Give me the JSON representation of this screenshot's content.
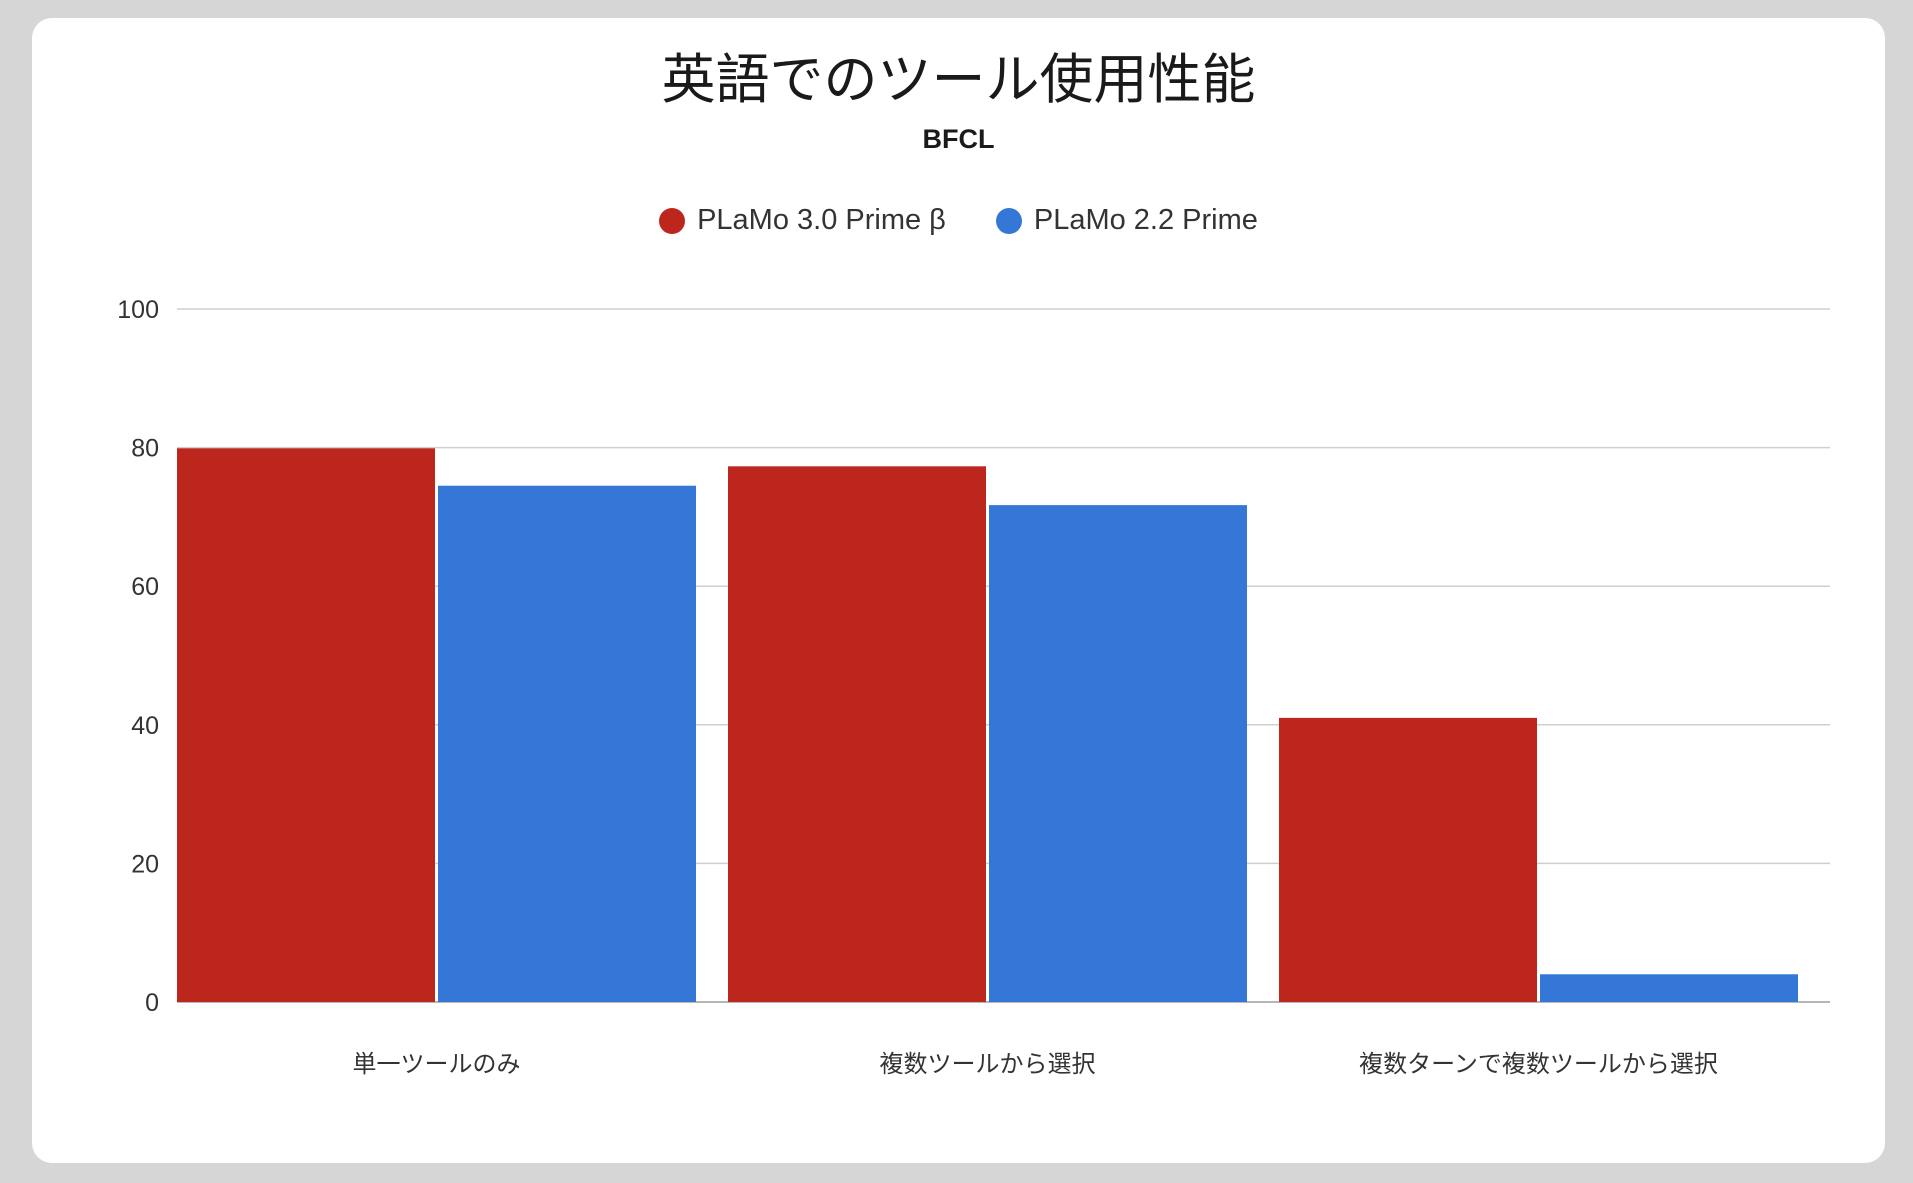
{
  "chart_data": {
    "type": "bar",
    "title": "英語でのツール使用性能",
    "subtitle": "BFCL",
    "categories": [
      "単一ツールのみ",
      "複数ツールから選択",
      "複数ターンで複数ツールから選択"
    ],
    "series": [
      {
        "name": "PLaMo 3.0 Prime β",
        "color": "#bd261d",
        "values": [
          79.9,
          77.3,
          41.0
        ]
      },
      {
        "name": "PLaMo 2.2 Prime",
        "color": "#3477d6",
        "values": [
          74.5,
          71.7,
          4.0
        ]
      }
    ],
    "ylim": [
      0,
      100
    ],
    "yticks": [
      "0",
      "20",
      "40",
      "60",
      "80",
      "100"
    ],
    "grid": true,
    "legend_position": "top"
  }
}
